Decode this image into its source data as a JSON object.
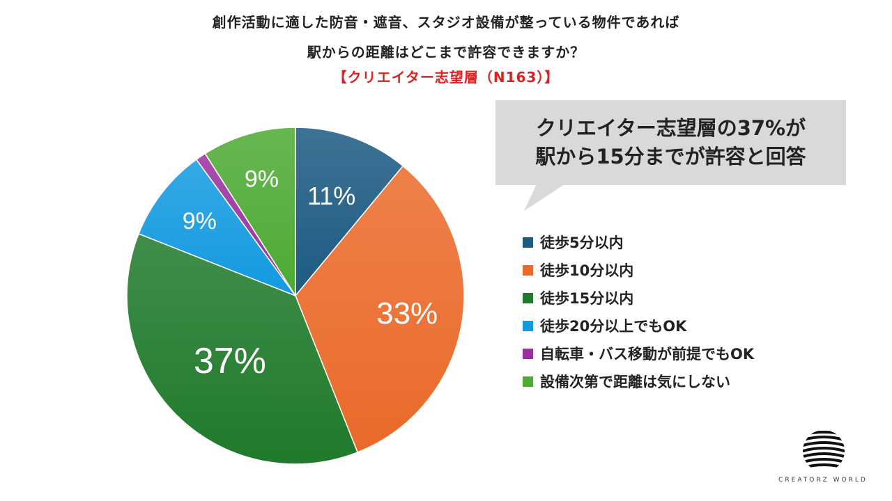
{
  "header": {
    "title_line1": "創作活動に適した防音・遮音、スタジオ設備が整っている物件であれば",
    "title_line2": "駅からの距離はどこまで許容できますか？",
    "title_line3": "【クリエイター志望層（N163）】"
  },
  "callout": {
    "line1": "クリエイター志望層の37%が",
    "line2": "駅から15分までが許容と回答"
  },
  "logo": {
    "text": "CREATORZ WORLD",
    "icon": "globe-stripes-logo"
  },
  "chart_data": {
    "type": "pie",
    "title": "創作活動に適した防音・遮音、スタジオ設備が整っている物件であれば駅からの距離はどこまで許容できますか？",
    "subtitle": "【クリエイター志望層（N163）】",
    "legend_position": "right",
    "series": [
      {
        "categories": [
          "徒歩5分以内",
          "徒歩10分以内",
          "徒歩15分以内",
          "徒歩20分以上でもOK",
          "自転車・バス移動が前提でもOK",
          "設備次第で距離は気にしない"
        ],
        "values": [
          11,
          33,
          37,
          9,
          1,
          9
        ],
        "labels": [
          "11%",
          "33%",
          "37%",
          "9%",
          "",
          "9%"
        ],
        "colors": [
          "#1d5a82",
          "#ea6a2a",
          "#1f7a2a",
          "#129ae0",
          "#9b2fa0",
          "#4daa33"
        ]
      }
    ]
  }
}
